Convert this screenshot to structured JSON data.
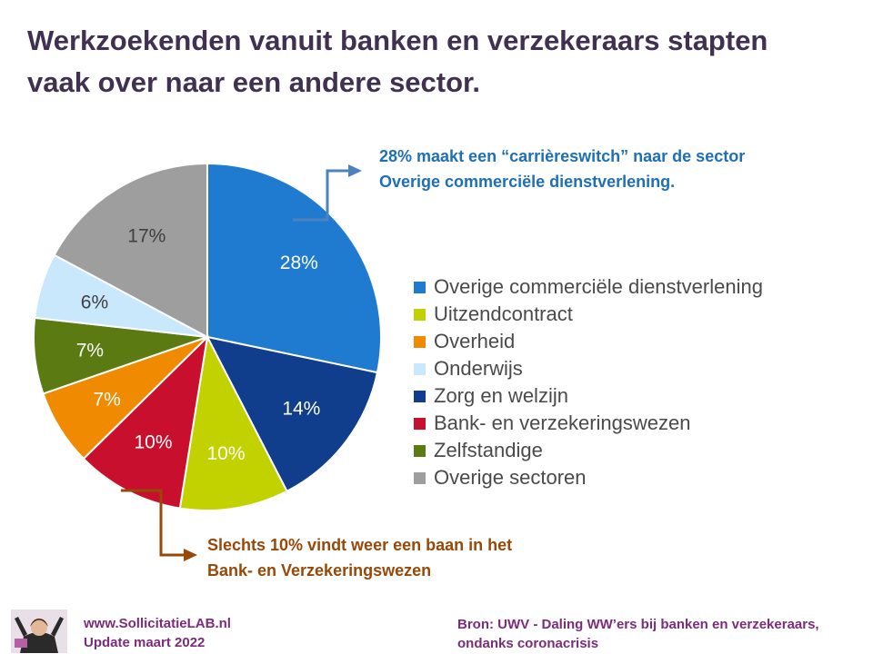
{
  "title": {
    "line1": "Werkzoekenden vanuit banken en verzekeraars stapten",
    "line2": "vaak over naar een andere sector."
  },
  "chart_data": {
    "type": "pie",
    "slices": [
      {
        "label": "Overige commerciële dienstverlening",
        "value": 28,
        "display": "28%",
        "color": "#1f7bd0"
      },
      {
        "label": "Zorg en welzijn",
        "value": 14,
        "display": "14%",
        "color": "#103e8c"
      },
      {
        "label": "Uitzendcontract",
        "value": 10,
        "display": "10%",
        "color": "#c2d200"
      },
      {
        "label": "Bank- en verzekeringswezen",
        "value": 10,
        "display": "10%",
        "color": "#c8102e"
      },
      {
        "label": "Overheid",
        "value": 7,
        "display": "7%",
        "color": "#f08a00"
      },
      {
        "label": "Zelfstandige",
        "value": 7,
        "display": "7%",
        "color": "#5b7a12"
      },
      {
        "label": "Onderwijs",
        "value": 6,
        "display": "6%",
        "color": "#c9e8fb"
      },
      {
        "label": "Overige sectoren",
        "value": 17,
        "display": "17%",
        "color": "#9e9e9e"
      }
    ],
    "legend": [
      {
        "label": "Overige commerciële dienstverlening",
        "color": "#1f7bd0"
      },
      {
        "label": "Uitzendcontract",
        "color": "#c2d200"
      },
      {
        "label": "Overheid",
        "color": "#f08a00"
      },
      {
        "label": "Onderwijs",
        "color": "#c9e8fb"
      },
      {
        "label": "Zorg en welzijn",
        "color": "#103e8c"
      },
      {
        "label": "Bank- en verzekeringswezen",
        "color": "#c8102e"
      },
      {
        "label": "Zelfstandige",
        "color": "#5b7a12"
      },
      {
        "label": "Overige sectoren",
        "color": "#9e9e9e"
      }
    ],
    "legend_placement": "right"
  },
  "annotations": {
    "top": {
      "line1": "28% maakt een  “carrièreswitch”  naar de sector",
      "line2": "Overige commerciële  dienstverlening.",
      "color": "#1f6fb5"
    },
    "bottom": {
      "line1": "Slechts 10% vindt weer een baan  in het",
      "line2": "Bank- en Verzekeringswezen",
      "color": "#984807"
    }
  },
  "footer": {
    "site": "www.SollicitatieLAB.nl",
    "update": "Update maart 2022",
    "source_line1": "Bron: UWV - Daling WW’ers bij banken en verzekeraars,",
    "source_line2": "ondanks coronacrisis"
  }
}
